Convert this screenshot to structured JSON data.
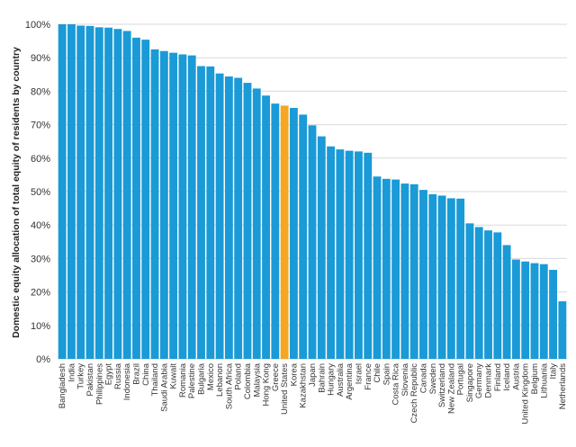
{
  "chart_data": {
    "type": "bar",
    "title": "",
    "xlabel": "",
    "ylabel": "Domestic equity allocation of total equity of residents by country",
    "ylim": [
      0,
      100
    ],
    "yticks": [
      "0%",
      "10%",
      "20%",
      "30%",
      "40%",
      "50%",
      "60%",
      "70%",
      "80%",
      "90%",
      "100%"
    ],
    "grid": true,
    "highlight": "United States",
    "colors": {
      "bar": "#1a9ad6",
      "highlight": "#f5a623"
    },
    "categories": [
      "Bangladesh",
      "India",
      "Turkey",
      "Pakistan",
      "Philippines",
      "Egypt",
      "Russia",
      "Indonesia",
      "Brazil",
      "China",
      "Thailand",
      "Saudi Arabia",
      "Kuwait",
      "Romania",
      "Palestine",
      "Bulgaria",
      "Mexico",
      "Lebanon",
      "South Africa",
      "Poland",
      "Colombia",
      "Malaysia",
      "Hong Kong",
      "Greece",
      "United States",
      "Korea",
      "Kazakhstan",
      "Japan",
      "Bahrain",
      "Hungary",
      "Australia",
      "Argentina",
      "Israel",
      "France",
      "Chile",
      "Spain",
      "Costa Rica",
      "Slovenia",
      "Czech Republic",
      "Canada",
      "Sweden",
      "Switzerland",
      "New Zealand",
      "Portugal",
      "Singapore",
      "Germany",
      "Denmark",
      "Finland",
      "Iceland",
      "Austria",
      "United Kingdom",
      "Belgium",
      "Lithuania",
      "Italy",
      "Netherlands"
    ],
    "values": [
      100,
      100,
      99.6,
      99.5,
      99.1,
      99,
      98.6,
      98,
      96,
      95.4,
      92.5,
      92,
      91.5,
      91,
      90.7,
      87.5,
      87.4,
      85.3,
      84.4,
      84,
      82.5,
      80.8,
      78.7,
      76.3,
      75.7,
      75,
      73,
      69.8,
      66.5,
      63.5,
      62.6,
      62.2,
      62,
      61.6,
      54.5,
      53.8,
      53.6,
      52.4,
      52.2,
      50.5,
      49.2,
      48.8,
      48,
      47.9,
      40.5,
      39.4,
      38.4,
      37.8,
      34,
      29.7,
      29.1,
      28.6,
      28.3,
      26.6,
      17.2
    ]
  }
}
